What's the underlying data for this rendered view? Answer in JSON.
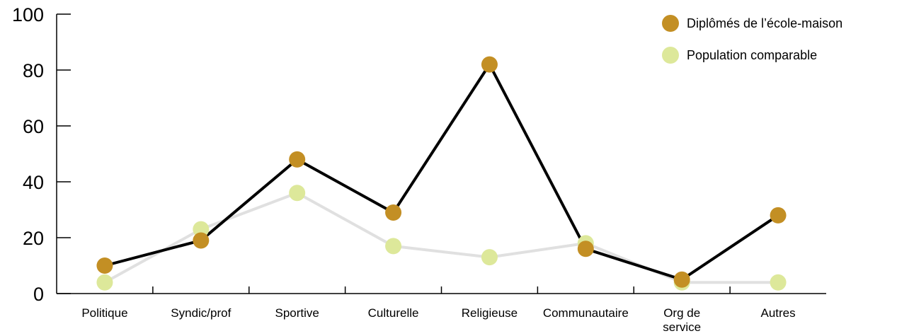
{
  "chart_data": {
    "type": "line",
    "categories": [
      "Politique",
      "Syndic/prof",
      "Sportive",
      "Culturelle",
      "Religieuse",
      "Communautaire",
      "Org de service",
      "Autres"
    ],
    "series": [
      {
        "name": "Diplômés de l’école-maison",
        "color": "#C38F24",
        "line_color": "#000000",
        "values": [
          10,
          19,
          48,
          29,
          82,
          16,
          5,
          28
        ]
      },
      {
        "name": "Population comparable",
        "color": "#DDE89A",
        "line_color": "#E0E0E0",
        "values": [
          4,
          23,
          36,
          17,
          13,
          18,
          4,
          4
        ]
      }
    ],
    "ylim": [
      0,
      100
    ],
    "yticks": [
      "0",
      "20",
      "40",
      "60",
      "80",
      "100"
    ],
    "legend_position": "top-right",
    "grid": false
  }
}
